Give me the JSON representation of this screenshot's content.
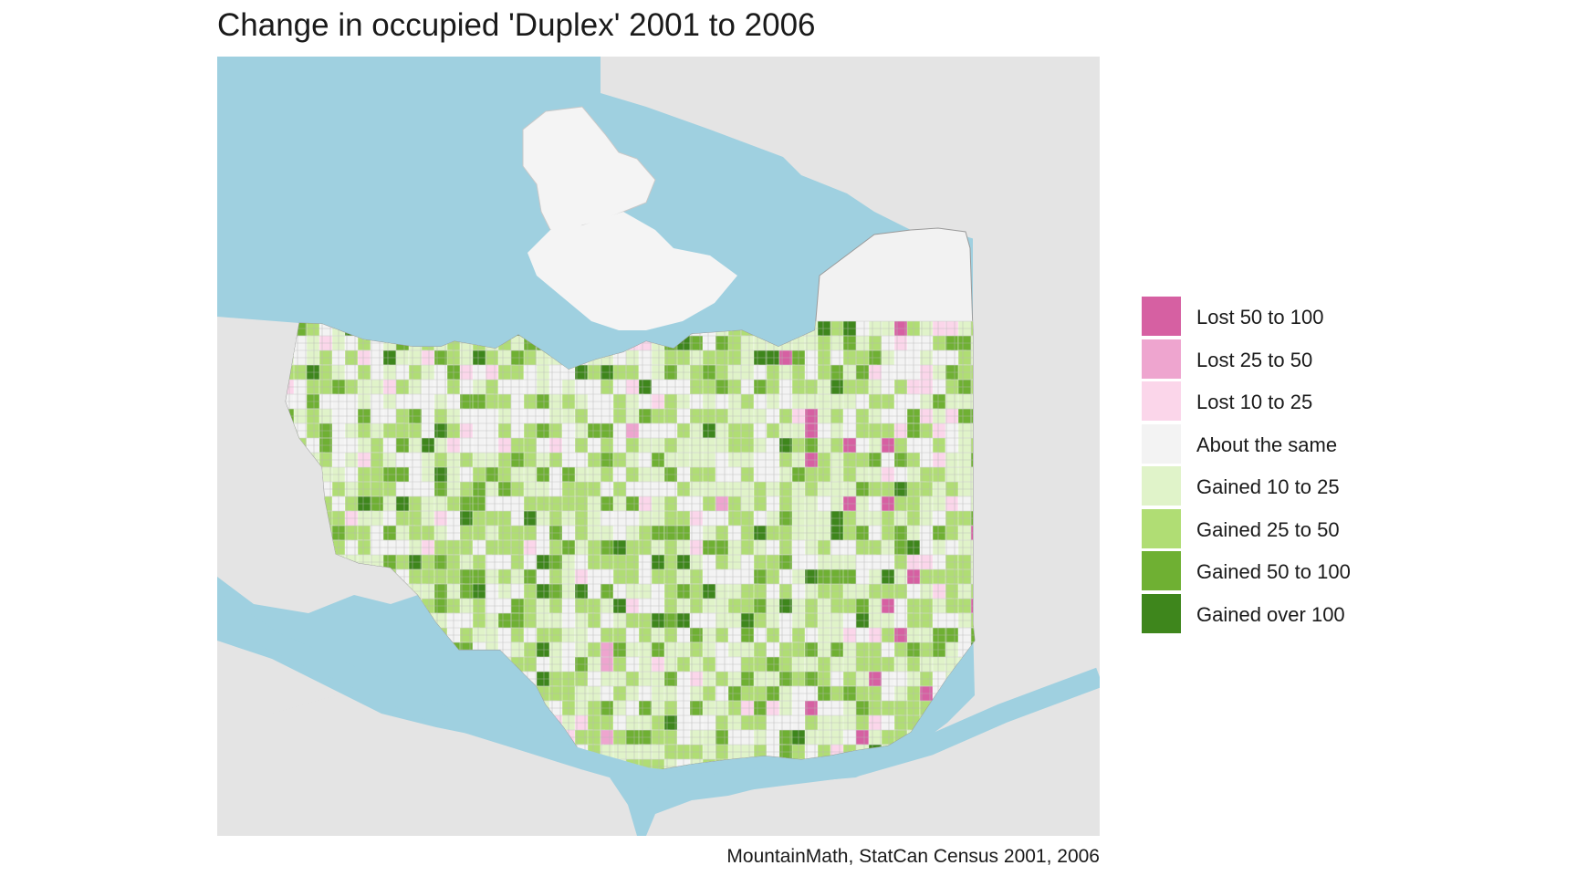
{
  "title": "Change in occupied 'Duplex' 2001 to 2006",
  "caption": "MountainMath, StatCan Census 2001, 2006",
  "map": {
    "water_color": "#9fd0e0",
    "land_color": "#e4e4e4",
    "city_base_color": "#f2f2f2",
    "road_color": "#b8b8b8"
  },
  "legend": {
    "items": [
      {
        "label": "Lost 50 to 100",
        "color": "#d660a2"
      },
      {
        "label": "Lost 25 to 50",
        "color": "#eea5cf"
      },
      {
        "label": "Lost 10 to 25",
        "color": "#fbd6ea"
      },
      {
        "label": "About the same",
        "color": "#f3f3f3"
      },
      {
        "label": "Gained 10 to 25",
        "color": "#e0f3c9"
      },
      {
        "label": "Gained 25 to 50",
        "color": "#b0dd74"
      },
      {
        "label": "Gained 50 to 100",
        "color": "#6fb033"
      },
      {
        "label": "Gained over 100",
        "color": "#3e861c"
      }
    ]
  }
}
